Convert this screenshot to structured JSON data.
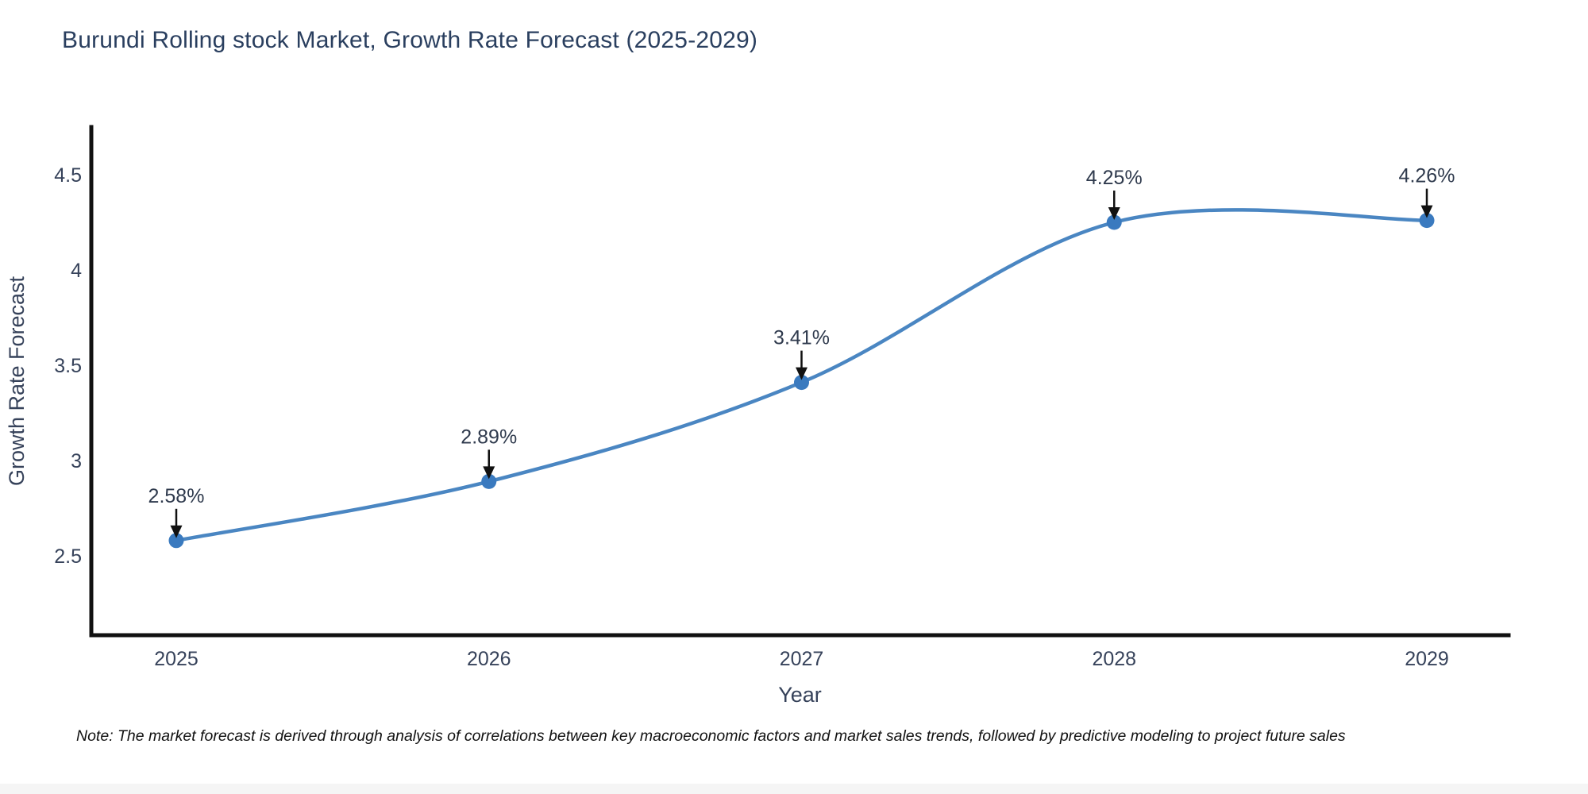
{
  "title": "Burundi Rolling stock Market, Growth Rate Forecast (2025-2029)",
  "note": "Note: The market forecast is derived through analysis of correlations between key macroeconomic factors and market sales trends, followed by predictive modeling to project future sales",
  "chart_data": {
    "type": "line",
    "title": "Burundi Rolling stock Market, Growth Rate Forecast (2025-2029)",
    "xlabel": "Year",
    "ylabel": "Growth Rate Forecast",
    "x": [
      2025,
      2026,
      2027,
      2028,
      2029
    ],
    "values": [
      2.58,
      2.89,
      3.41,
      4.25,
      4.26
    ],
    "point_labels": [
      "2.58%",
      "2.89%",
      "3.41%",
      "4.25%",
      "4.26%"
    ],
    "yticks": [
      2.5,
      3,
      3.5,
      4,
      4.5
    ],
    "ylim": [
      2.08,
      4.75
    ],
    "grid": false,
    "legend_position": "none",
    "smooth_spline": true,
    "annotation_arrows": true,
    "colors": {
      "line": "#4a86c2",
      "marker": "#3a7abf",
      "axis": "#111111",
      "title_text": "#2a3f5f",
      "tick_text": "#36425a",
      "annotation_text": "#2f3a4d",
      "arrow": "#111111",
      "note_text": "#111111"
    }
  }
}
